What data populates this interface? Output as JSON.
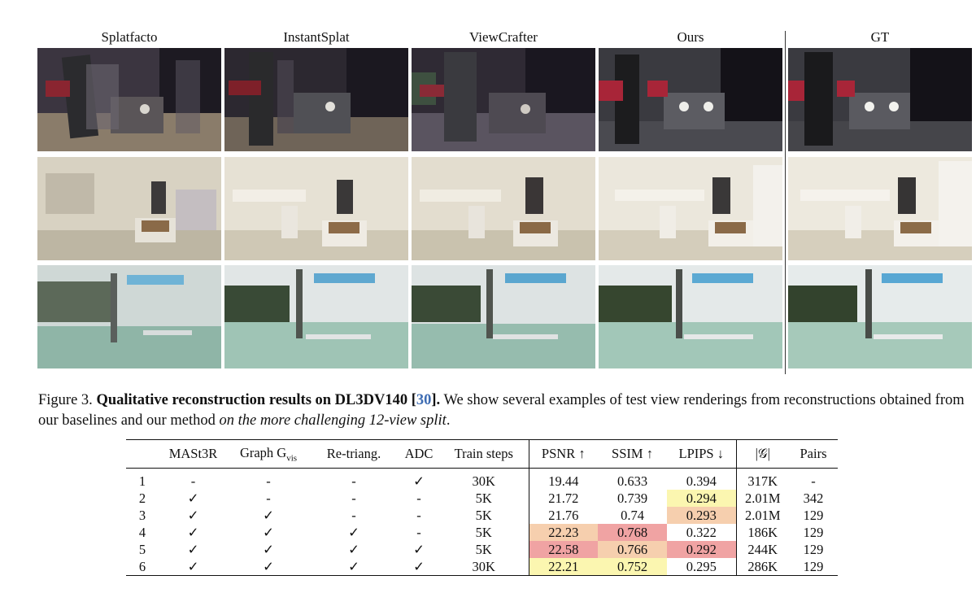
{
  "figure": {
    "columns": [
      "Splatfacto",
      "InstantSplat",
      "ViewCrafter",
      "Ours",
      "GT"
    ],
    "scenes": [
      "car",
      "gallery",
      "fitness"
    ],
    "caption": {
      "prefix": "Figure 3. ",
      "bold": "Qualitative reconstruction results on DL3DV140 [",
      "ref": "30",
      "bold_end": "].",
      "text": " We show several examples of test view renderings from reconstructions obtained from our baselines and our method ",
      "italic": "on the more challenging 12-view split",
      "end": "."
    }
  },
  "table": {
    "headers": {
      "id": "",
      "mast3r": "MASt3R",
      "graph": "Graph G",
      "graph_sub": "vis",
      "retriang": "Re-triang.",
      "adc": "ADC",
      "steps": "Train steps",
      "psnr": "PSNR ↑",
      "ssim": "SSIM ↑",
      "lpips": "LPIPS ↓",
      "g": "|𝒢|",
      "pairs": "Pairs"
    },
    "rows": [
      {
        "id": "1",
        "mast3r": "-",
        "graph": "-",
        "retriang": "-",
        "adc": "✓",
        "steps": "30K",
        "psnr": "19.44",
        "ssim": "0.633",
        "lpips": "0.394",
        "g": "317K",
        "pairs": "-"
      },
      {
        "id": "2",
        "mast3r": "✓",
        "graph": "-",
        "retriang": "-",
        "adc": "-",
        "steps": "5K",
        "psnr": "21.72",
        "ssim": "0.739",
        "lpips": "0.294",
        "g": "2.01M",
        "pairs": "342"
      },
      {
        "id": "3",
        "mast3r": "✓",
        "graph": "✓",
        "retriang": "-",
        "adc": "-",
        "steps": "5K",
        "psnr": "21.76",
        "ssim": "0.74",
        "lpips": "0.293",
        "g": "2.01M",
        "pairs": "129"
      },
      {
        "id": "4",
        "mast3r": "✓",
        "graph": "✓",
        "retriang": "✓",
        "adc": "-",
        "steps": "5K",
        "psnr": "22.23",
        "ssim": "0.768",
        "lpips": "0.322",
        "g": "186K",
        "pairs": "129"
      },
      {
        "id": "5",
        "mast3r": "✓",
        "graph": "✓",
        "retriang": "✓",
        "adc": "✓",
        "steps": "5K",
        "psnr": "22.58",
        "ssim": "0.766",
        "lpips": "0.292",
        "g": "244K",
        "pairs": "129"
      },
      {
        "id": "6",
        "mast3r": "✓",
        "graph": "✓",
        "retriang": "✓",
        "adc": "✓",
        "steps": "30K",
        "psnr": "22.21",
        "ssim": "0.752",
        "lpips": "0.295",
        "g": "286K",
        "pairs": "129"
      }
    ],
    "highlight_colors": {
      "best": "#f0a3a3",
      "second": "#f6cfae",
      "third": "#fbf6b0"
    }
  }
}
